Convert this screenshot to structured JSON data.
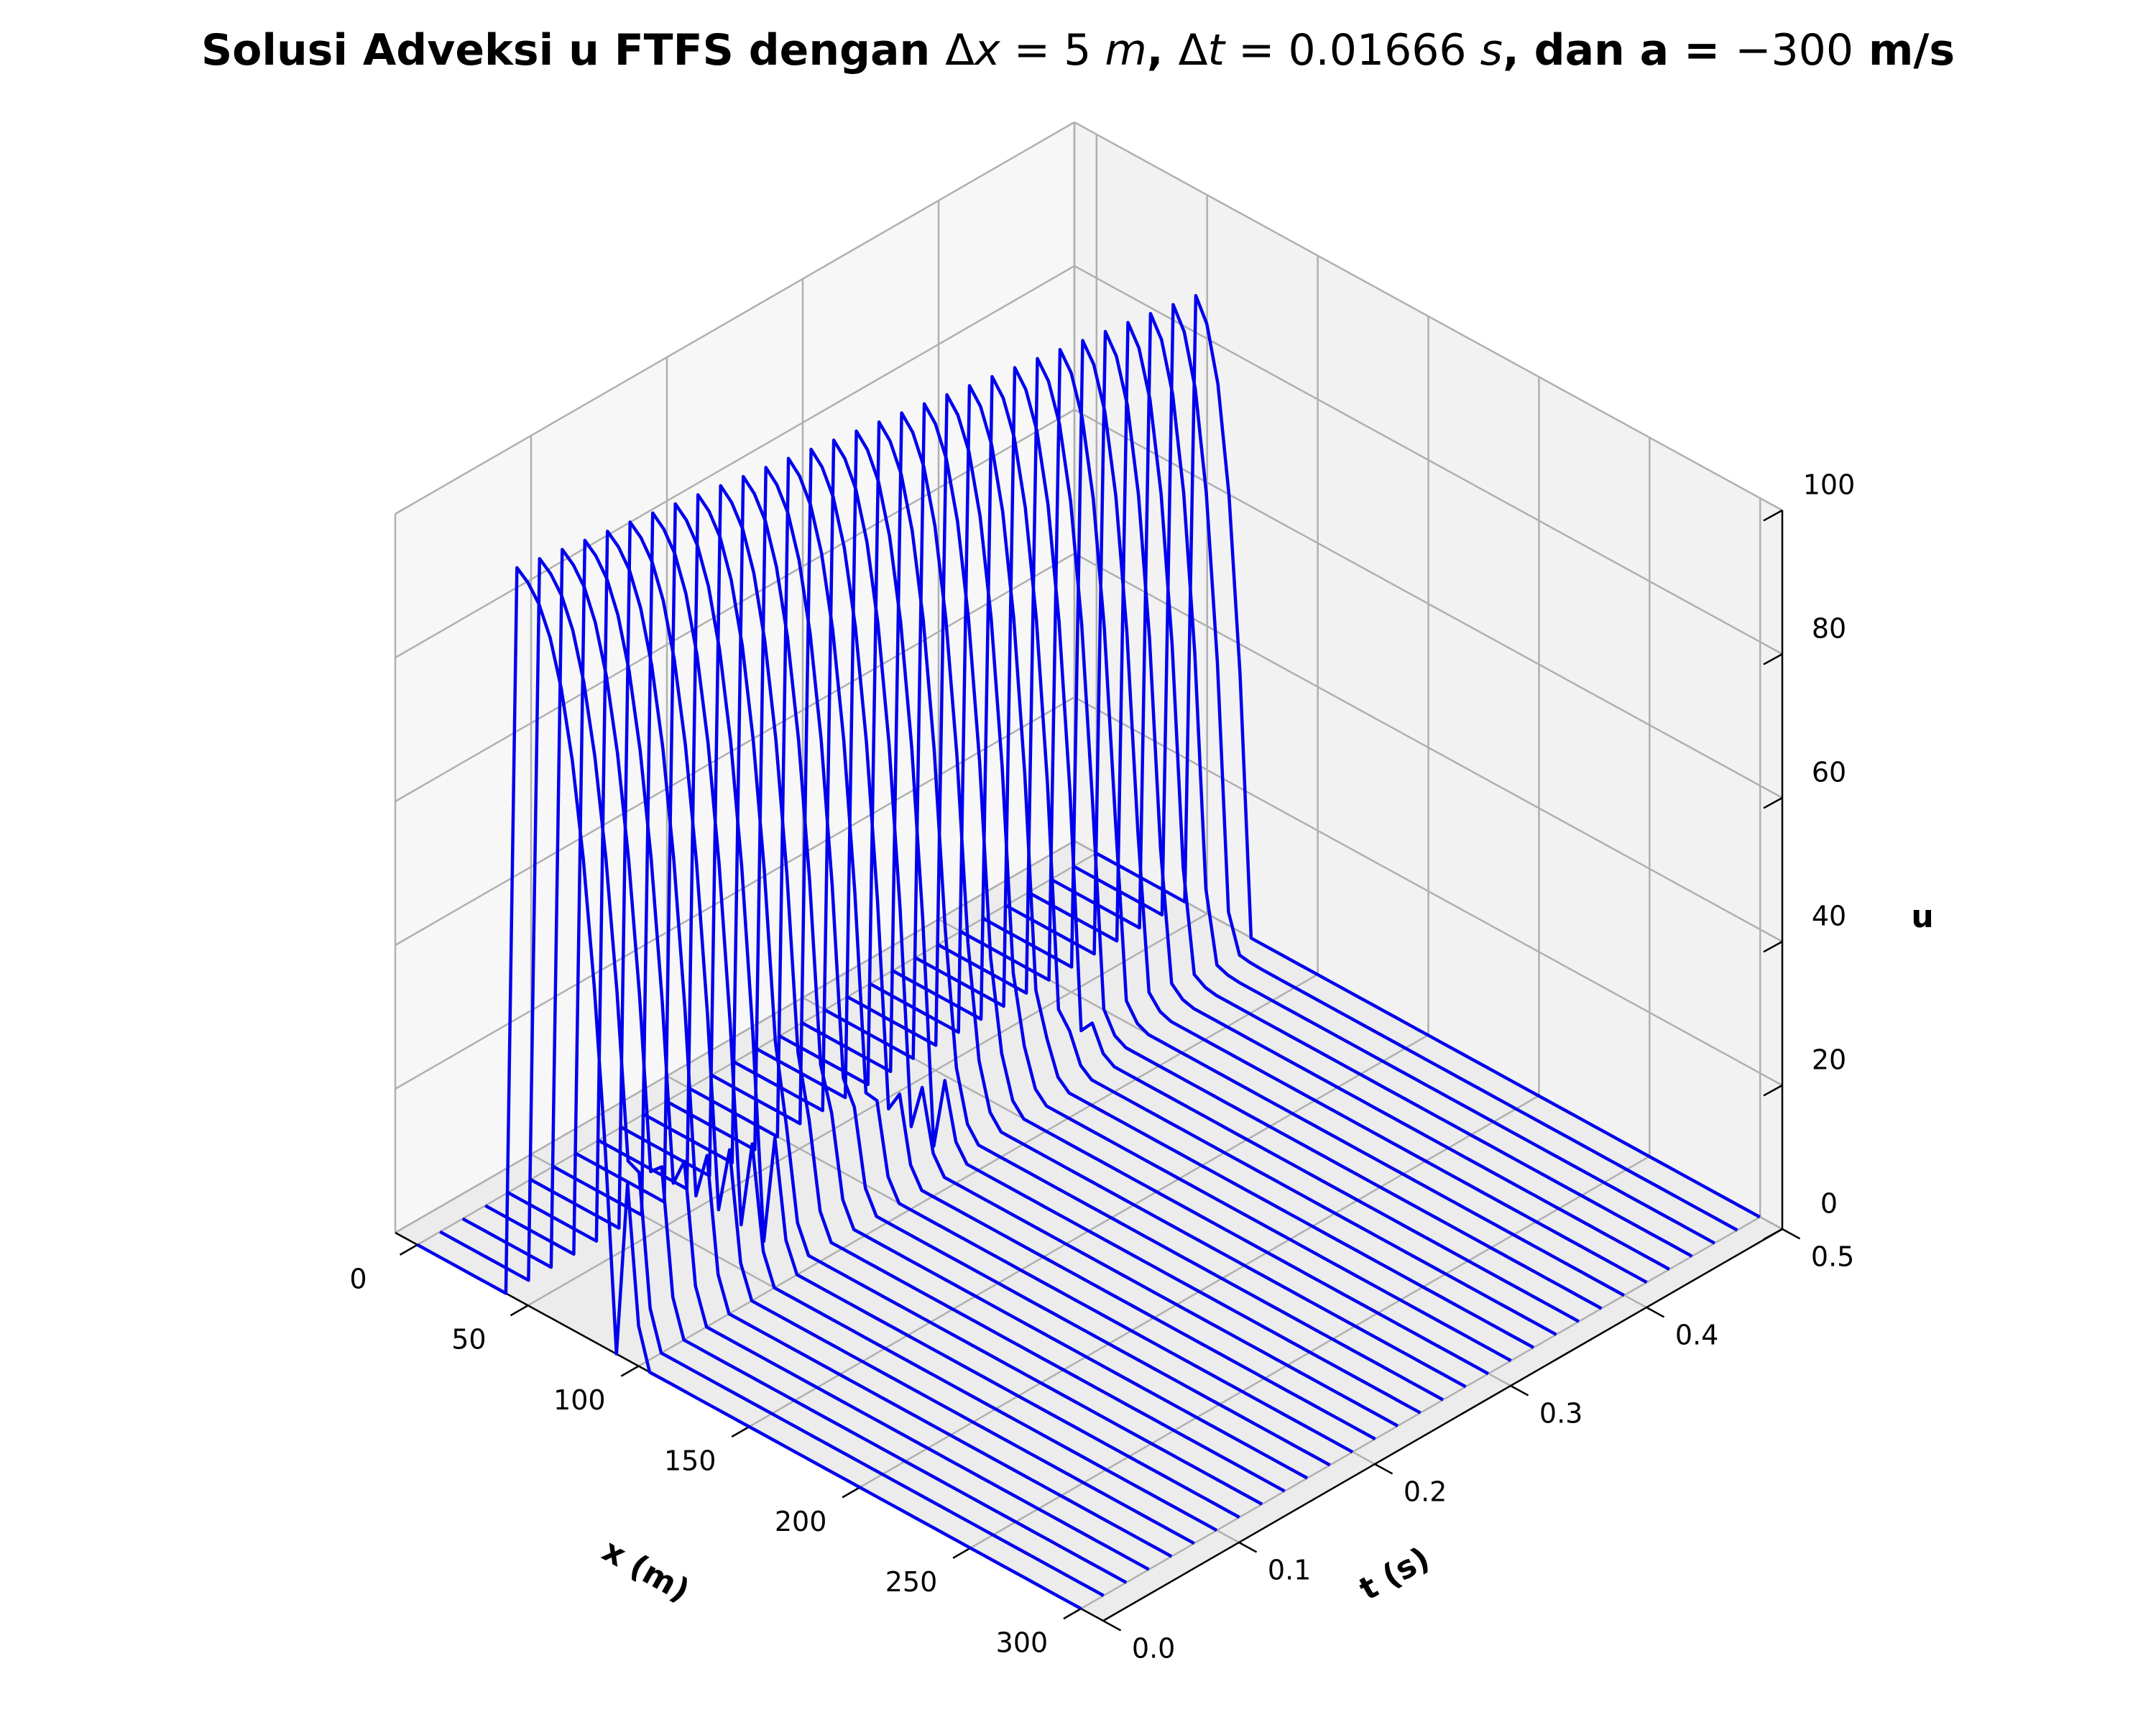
{
  "chart_data": {
    "type": "line",
    "title": {
      "prefix": "Solusi Adveksi u FTFS dengan ",
      "dx_sym": "Δ",
      "dx_var": "x",
      "dx_eq": " = 5 ",
      "dx_unit": "m",
      "sep1": ", ",
      "dt_sym": "Δ",
      "dt_var": "t",
      "dt_eq": " = 0.01666 ",
      "dt_unit": "s",
      "suffix_a": ", dan a = ",
      "a_val": "−300",
      "suffix_b": " m/s"
    },
    "xlabel": "x (m)",
    "ylabel": "t (s)",
    "zlabel": "u",
    "x_ticks": [
      "0",
      "50",
      "100",
      "150",
      "200",
      "250",
      "300"
    ],
    "t_ticks": [
      "0.0",
      "0.1",
      "0.2",
      "0.3",
      "0.4",
      "0.5"
    ],
    "u_ticks": [
      "0",
      "20",
      "40",
      "60",
      "80",
      "100"
    ],
    "xlim": [
      -10,
      310
    ],
    "tlim": [
      0,
      0.5
    ],
    "ulim": [
      0,
      100
    ],
    "dx": 5,
    "dt": 0.01666,
    "a": -300,
    "n_time_steps": 31,
    "pulse": {
      "left_edge_x": 40,
      "right_edge_initial_x": 90,
      "right_edge_final_x": 70,
      "peak_initial": 102,
      "peak_final": 86
    },
    "line_color": "#0000ee",
    "grid": true
  }
}
